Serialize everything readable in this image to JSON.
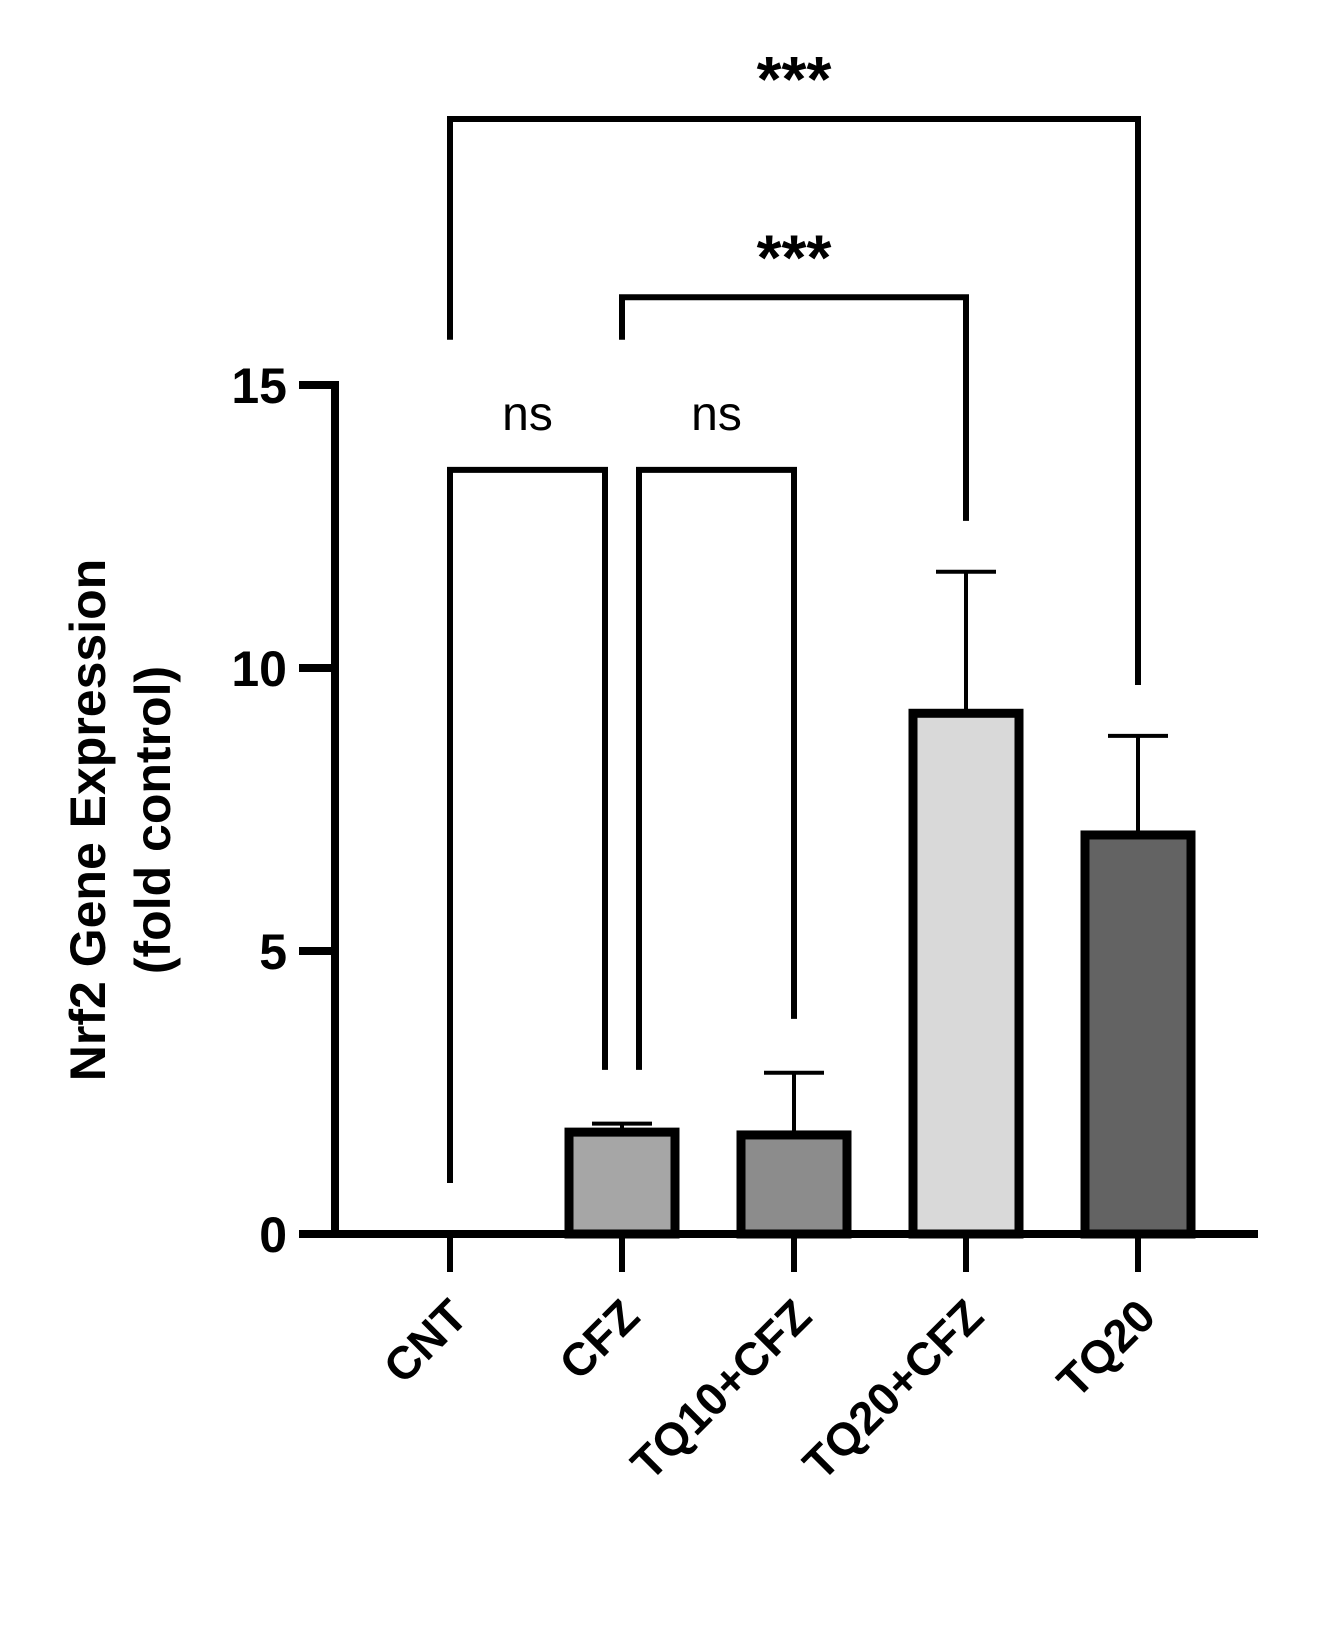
{
  "chart_data": {
    "type": "bar",
    "categories": [
      "CNT",
      "CFZ",
      "TQ10+CFZ",
      "TQ20+CFZ",
      "TQ20"
    ],
    "values": [
      0,
      1.8,
      1.75,
      9.2,
      7.05
    ],
    "error_upper": [
      0,
      1.95,
      2.85,
      11.7,
      8.8
    ],
    "bar_colors": [
      "#ffffff",
      "#a6a6a6",
      "#8c8c8c",
      "#d9d9d9",
      "#636363"
    ],
    "ylabel_line1": "Nrf2 Gene Expression",
    "ylabel_line2": "(fold control)",
    "ylim": [
      0,
      15
    ],
    "yticks": [
      {
        "value": 0,
        "label": "0"
      },
      {
        "value": 5,
        "label": "5"
      },
      {
        "value": 10,
        "label": "10"
      },
      {
        "value": 15,
        "label": "15"
      }
    ],
    "grid": false,
    "comparisons": [
      {
        "from": 0,
        "to": 1,
        "label": "ns",
        "bracket_y": 13.5,
        "left_end": 0.9,
        "right_end": 2.9,
        "bold": false
      },
      {
        "from": 1,
        "to": 2,
        "label": "ns",
        "bracket_y": 13.5,
        "left_end": 2.9,
        "right_end": 3.8,
        "bold": false
      },
      {
        "from": 1,
        "to": 3,
        "label": "***",
        "bracket_y": 16.55,
        "left_end": 15.8,
        "right_end": 12.6,
        "bold": true
      },
      {
        "from": 0,
        "to": 4,
        "label": "***",
        "bracket_y": 19.7,
        "left_end": 15.8,
        "right_end": 9.7,
        "bold": true
      }
    ]
  }
}
